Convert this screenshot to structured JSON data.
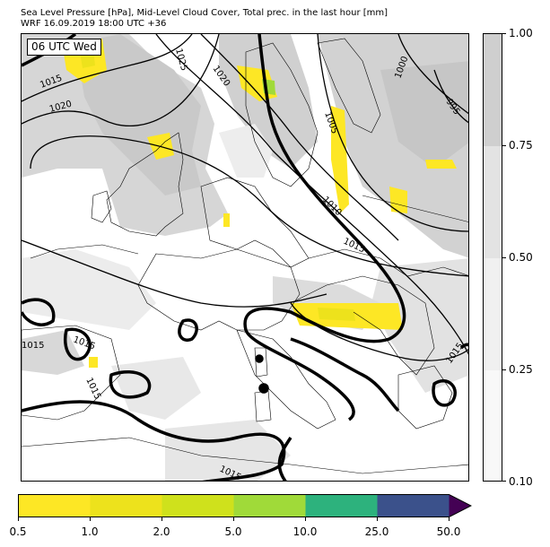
{
  "header": {
    "title_line1": "Sea Level Pressure [hPa], Mid-Level Cloud Cover, Total prec. in the last hour [mm]",
    "title_line2": "WRF 16.09.2019 18:00 UTC +36"
  },
  "map": {
    "time_label": "06 UTC Wed",
    "isobar_labels": [
      "1015",
      "1020",
      "1025",
      "1020",
      "1000",
      "995",
      "1005",
      "1010",
      "1015",
      "1015",
      "1015",
      "1015",
      "1015",
      "1015",
      "1015"
    ]
  },
  "cloud_colorbar": {
    "ticks": [
      "1.00",
      "0.75",
      "0.50",
      "0.25",
      "0.10"
    ],
    "colors": [
      "#cfcfcf",
      "#e3e3e3",
      "#f0f0f0",
      "#f8f8f8"
    ]
  },
  "precip_colorbar": {
    "ticks": [
      "0.5",
      "1.0",
      "2.0",
      "5.0",
      "10.0",
      "25.0",
      "50.0"
    ],
    "colors": [
      "#fde725",
      "#ede21c",
      "#cfe11c",
      "#a0da39",
      "#2db27d",
      "#3b518b",
      "#440154"
    ]
  }
}
